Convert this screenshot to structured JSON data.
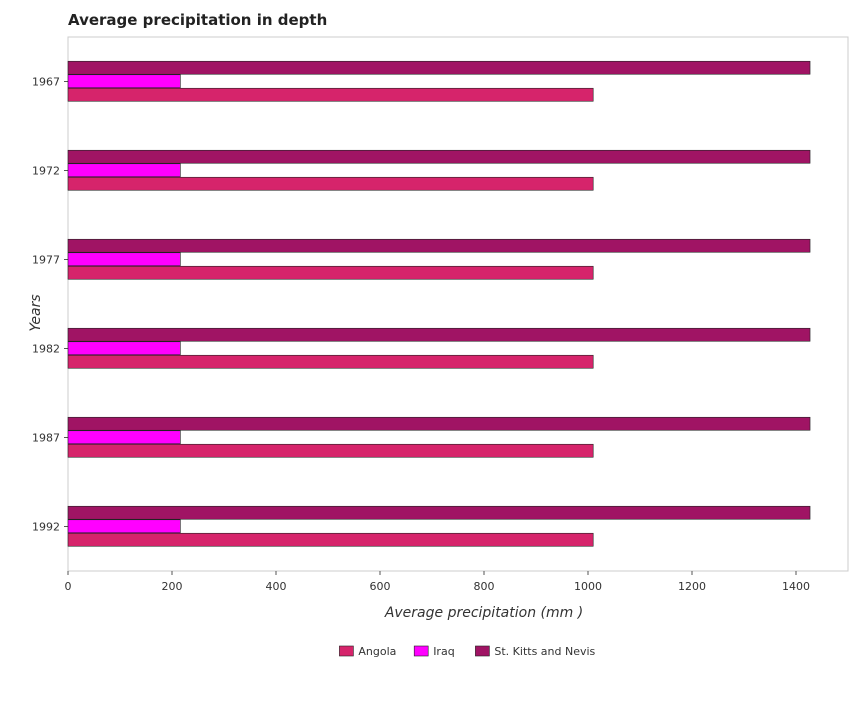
{
  "chart_data": {
    "type": "bar",
    "orientation": "horizontal",
    "title": "Average precipitation in depth",
    "xlabel": "Average precipitation (mm )",
    "ylabel": "Years",
    "categories": [
      "1967",
      "1972",
      "1977",
      "1982",
      "1987",
      "1992"
    ],
    "series": [
      {
        "name": "Angola",
        "color": "#d6246b",
        "values": [
          1010,
          1010,
          1010,
          1010,
          1010,
          1010
        ]
      },
      {
        "name": "Iraq",
        "color": "#ff00ff",
        "values": [
          216,
          216,
          216,
          216,
          216,
          216
        ]
      },
      {
        "name": "St. Kitts and Nevis",
        "color": "#a01464",
        "values": [
          1427,
          1427,
          1427,
          1427,
          1427,
          1427
        ]
      }
    ],
    "xlim": [
      0,
      1500
    ],
    "xticks": [
      0,
      200,
      400,
      600,
      800,
      1000,
      1200,
      1400
    ],
    "grid": false,
    "legend": "bottom-center"
  }
}
